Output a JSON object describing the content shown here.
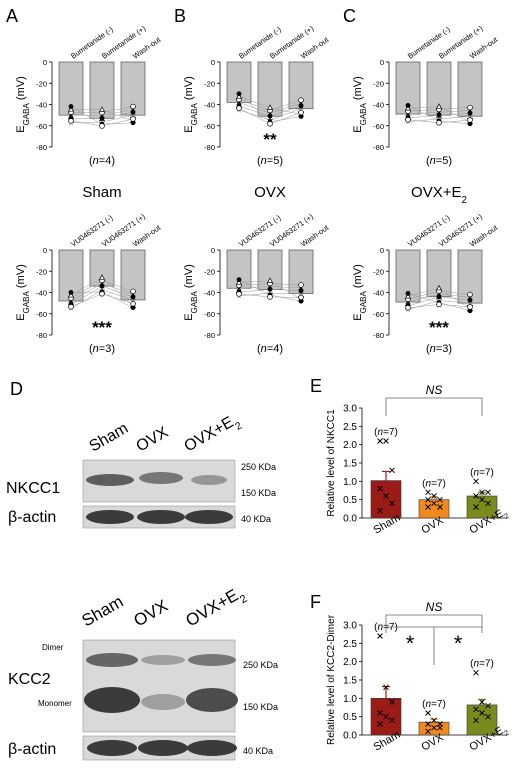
{
  "colors": {
    "bar_gray": "#c4c4c4",
    "bar_red": "#9b1c16",
    "bar_orange": "#f08a1e",
    "bar_olive": "#7a8a1c",
    "axis": "#000000"
  },
  "egaba": {
    "ylabel_main": "E",
    "ylabel_sub": "GABA",
    "ylabel_unit": " (mV)",
    "yticks": [
      "0",
      "-20",
      "-40",
      "-60",
      "-80"
    ],
    "ylim": [
      -80,
      0
    ],
    "panels": [
      {
        "letter": "A",
        "labels": [
          "Bumetanide (-)",
          "Bumetanide (+)",
          "Wash-out"
        ],
        "means": [
          -50,
          -53,
          -50
        ],
        "errors": [
          3,
          2,
          2
        ],
        "n_text": "(n=4)",
        "stars": ""
      },
      {
        "letter": "B",
        "labels": [
          "Bumetanide (-)",
          "Bumetanide (+)",
          "Wash-out"
        ],
        "means": [
          -38,
          -51,
          -44
        ],
        "errors": [
          5,
          3,
          3
        ],
        "n_text": "(n=5)",
        "stars": "**"
      },
      {
        "letter": "C",
        "labels": [
          "Bumetanide (-)",
          "Bumetanide (+)",
          "Wash-out"
        ],
        "means": [
          -49,
          -50,
          -51
        ],
        "errors": [
          5,
          2,
          2
        ],
        "n_text": "(n=5)",
        "stars": ""
      },
      {
        "letter": "",
        "labels": [
          "VU0463271 (-)",
          "VU0463271 (+)",
          "Wash-out"
        ],
        "means": [
          -48,
          -34,
          -47
        ],
        "errors": [
          3,
          6,
          3
        ],
        "n_text": "(n=3)",
        "stars": "***"
      },
      {
        "letter": "",
        "labels": [
          "VU0463271 (-)",
          "VU0463271 (+)",
          "Wash-out"
        ],
        "means": [
          -36,
          -37,
          -41
        ],
        "errors": [
          4,
          4,
          3
        ],
        "n_text": "(n=4)",
        "stars": ""
      },
      {
        "letter": "",
        "labels": [
          "VU0463271 (-)",
          "VU0463271 (+)",
          "Wash-out"
        ],
        "means": [
          -49,
          -44,
          -50
        ],
        "errors": [
          3,
          2,
          2
        ],
        "n_text": "(n=3)",
        "stars": "***"
      }
    ],
    "group_titles": [
      "Sham",
      "OVX",
      "OVX+E"
    ],
    "group_title_sub": [
      "",
      "",
      "2"
    ]
  },
  "western": {
    "panel_letter": "D",
    "lanes": [
      "Sham",
      "OVX",
      "OVX+E"
    ],
    "lane_sub": [
      "",
      "",
      "2"
    ],
    "nkcc1_label": "NKCC1",
    "kcc2_label": "KCC2",
    "actin_label": "β-actin",
    "kda_top": [
      "250 KDa",
      "150 KDa",
      "40 KDa"
    ],
    "kda_bottom": [
      "250 KDa",
      "150 KDa",
      "40 KDa"
    ],
    "dimer_label": "Dimer",
    "monomer_label": "Monomer"
  },
  "chart_data": [
    {
      "type": "bar",
      "panel": "E",
      "categories": [
        "Sham",
        "OVX",
        "OVX+E2"
      ],
      "category_display": [
        "Sham",
        "OVX",
        "OVX+E"
      ],
      "category_sub": [
        "",
        "",
        "2"
      ],
      "values": [
        1.02,
        0.5,
        0.6
      ],
      "errors": [
        0.25,
        0.08,
        0.1
      ],
      "n_labels": [
        "(n=7)",
        "(n=7)",
        "(n=7)"
      ],
      "ylabel": "Relative level of NKCC1",
      "ylim": [
        0,
        3.0
      ],
      "yticks": [
        "0.0",
        "0.5",
        "1.0",
        "1.5",
        "2.0",
        "2.5",
        "3.0"
      ],
      "significance": "NS",
      "points": [
        [
          2.1,
          2.1,
          1.3,
          0.8,
          0.6,
          0.4,
          0.2
        ],
        [
          0.7,
          0.6,
          0.5,
          0.5,
          0.4,
          0.3,
          0.3
        ],
        [
          1.0,
          0.7,
          0.7,
          0.6,
          0.5,
          0.4,
          0.3
        ]
      ]
    },
    {
      "type": "bar",
      "panel": "F",
      "categories": [
        "Sham",
        "OVX",
        "OVX+E2"
      ],
      "category_display": [
        "Sham",
        "OVX",
        "OVX+E"
      ],
      "category_sub": [
        "",
        "",
        "2"
      ],
      "values": [
        1.0,
        0.35,
        0.82
      ],
      "errors": [
        0.32,
        0.08,
        0.15
      ],
      "n_labels": [
        "(n=7)",
        "(n=7)",
        "(n=7)"
      ],
      "ylabel": "Relative level of KCC2-Dimer",
      "ylim": [
        0,
        3.0
      ],
      "yticks": [
        "0.0",
        "0.5",
        "1.0",
        "1.5",
        "2.0",
        "2.5",
        "3.0"
      ],
      "significance": "NS",
      "pairwise_stars": [
        "*",
        "*"
      ],
      "points": [
        [
          2.7,
          1.3,
          0.9,
          0.6,
          0.5,
          0.4,
          0.3
        ],
        [
          0.6,
          0.4,
          0.3,
          0.3,
          0.2,
          0.2,
          0.1
        ],
        [
          1.7,
          0.9,
          0.8,
          0.7,
          0.6,
          0.5,
          0.4
        ]
      ]
    }
  ]
}
